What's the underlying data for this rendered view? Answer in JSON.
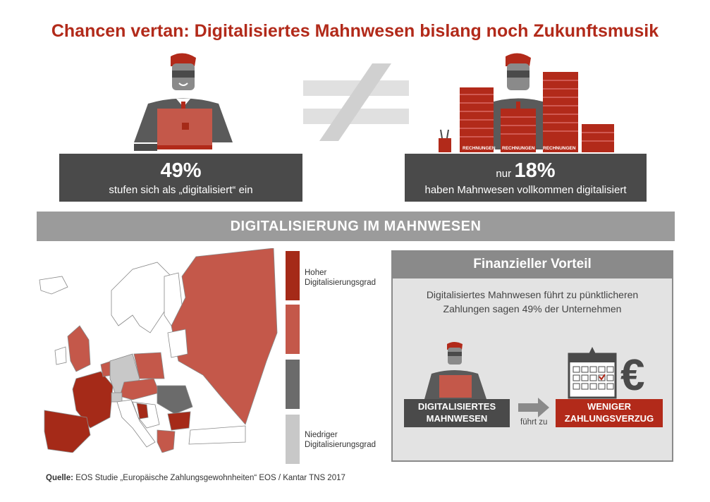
{
  "title": "Chancen vertan: Digitalisiertes Mahnwesen bislang noch Zukunftsmusik",
  "left_stat": {
    "value": "49%",
    "caption": "stufen sich als „digitalisiert“ ein"
  },
  "right_stat": {
    "prefix": "nur",
    "value": "18%",
    "caption": "haben Mahnwesen vollkommen digitalisiert"
  },
  "stack_labels": [
    "RECHNUNGEN",
    "RECHNUNGEN",
    "RECHNUNGEN"
  ],
  "banner": "DIGITALISIERUNG IM MAHNWESEN",
  "legend": {
    "high": "Hoher Digitalisierungsgrad",
    "low": "Niedriger Digitalisierungsgrad",
    "colors": [
      "#a52a18",
      "#c4584a",
      "#6b6b6b",
      "#c8c8c8"
    ]
  },
  "panel": {
    "heading": "Finanzieller Vorteil",
    "text": "Digitalisiertes Mahnwesen führt zu pünktlicheren Zahlungen sagen 49% der Unternehmen",
    "left_label": "DIGITALISIERTES MAHNWESEN",
    "arrow_caption": "führt zu",
    "right_label": "WENIGER ZAHLUNGSVERZUG",
    "currency": "€"
  },
  "source": {
    "label": "Quelle:",
    "text": "EOS Studie „Europäische Zahlungsgewohnheiten“ EOS / Kantar TNS 2017"
  },
  "colors": {
    "accent": "#b22a1a",
    "dark": "#4a4a4a",
    "mid": "#8a8a8a"
  }
}
